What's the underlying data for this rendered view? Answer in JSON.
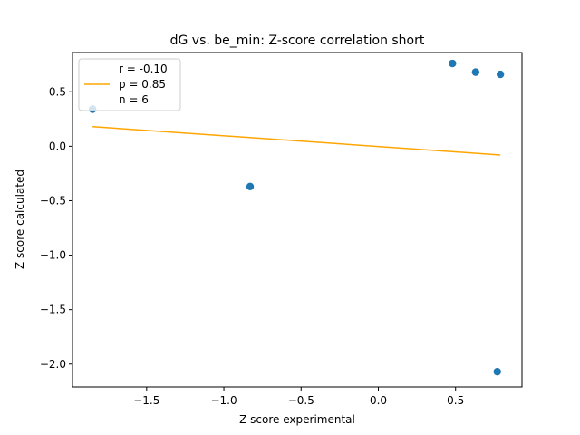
{
  "chart_data": {
    "type": "scatter",
    "title": "dG vs. be_min: Z-score correlation short",
    "xlabel": "Z score experimental",
    "ylabel": "Z score calculated",
    "xlim": [
      -1.98,
      0.93
    ],
    "ylim": [
      -2.21,
      0.86
    ],
    "x_ticks": [
      -1.5,
      -1.0,
      -0.5,
      0.0,
      0.5
    ],
    "x_tick_labels": [
      "−1.5",
      "−1.0",
      "−0.5",
      "0.0",
      "0.5"
    ],
    "y_ticks": [
      -2.0,
      -1.5,
      -1.0,
      -0.5,
      0.0,
      0.5
    ],
    "y_tick_labels": [
      "−2.0",
      "−1.5",
      "−1.0",
      "−0.5",
      "0.0",
      "0.5"
    ],
    "grid": false,
    "series": [
      {
        "type": "scatter",
        "color": "#1f77b4",
        "x": [
          -1.85,
          -0.83,
          0.48,
          0.63,
          0.79,
          0.77
        ],
        "y": [
          0.34,
          -0.37,
          0.76,
          0.68,
          0.66,
          -2.07
        ]
      },
      {
        "type": "line",
        "color": "#ffa500",
        "x": [
          -1.85,
          0.79
        ],
        "y": [
          0.18,
          -0.08
        ]
      }
    ],
    "legend": {
      "placement": "upper-left",
      "lines": [
        "r = -0.10",
        "p = 0.85",
        "n = 6"
      ]
    }
  }
}
